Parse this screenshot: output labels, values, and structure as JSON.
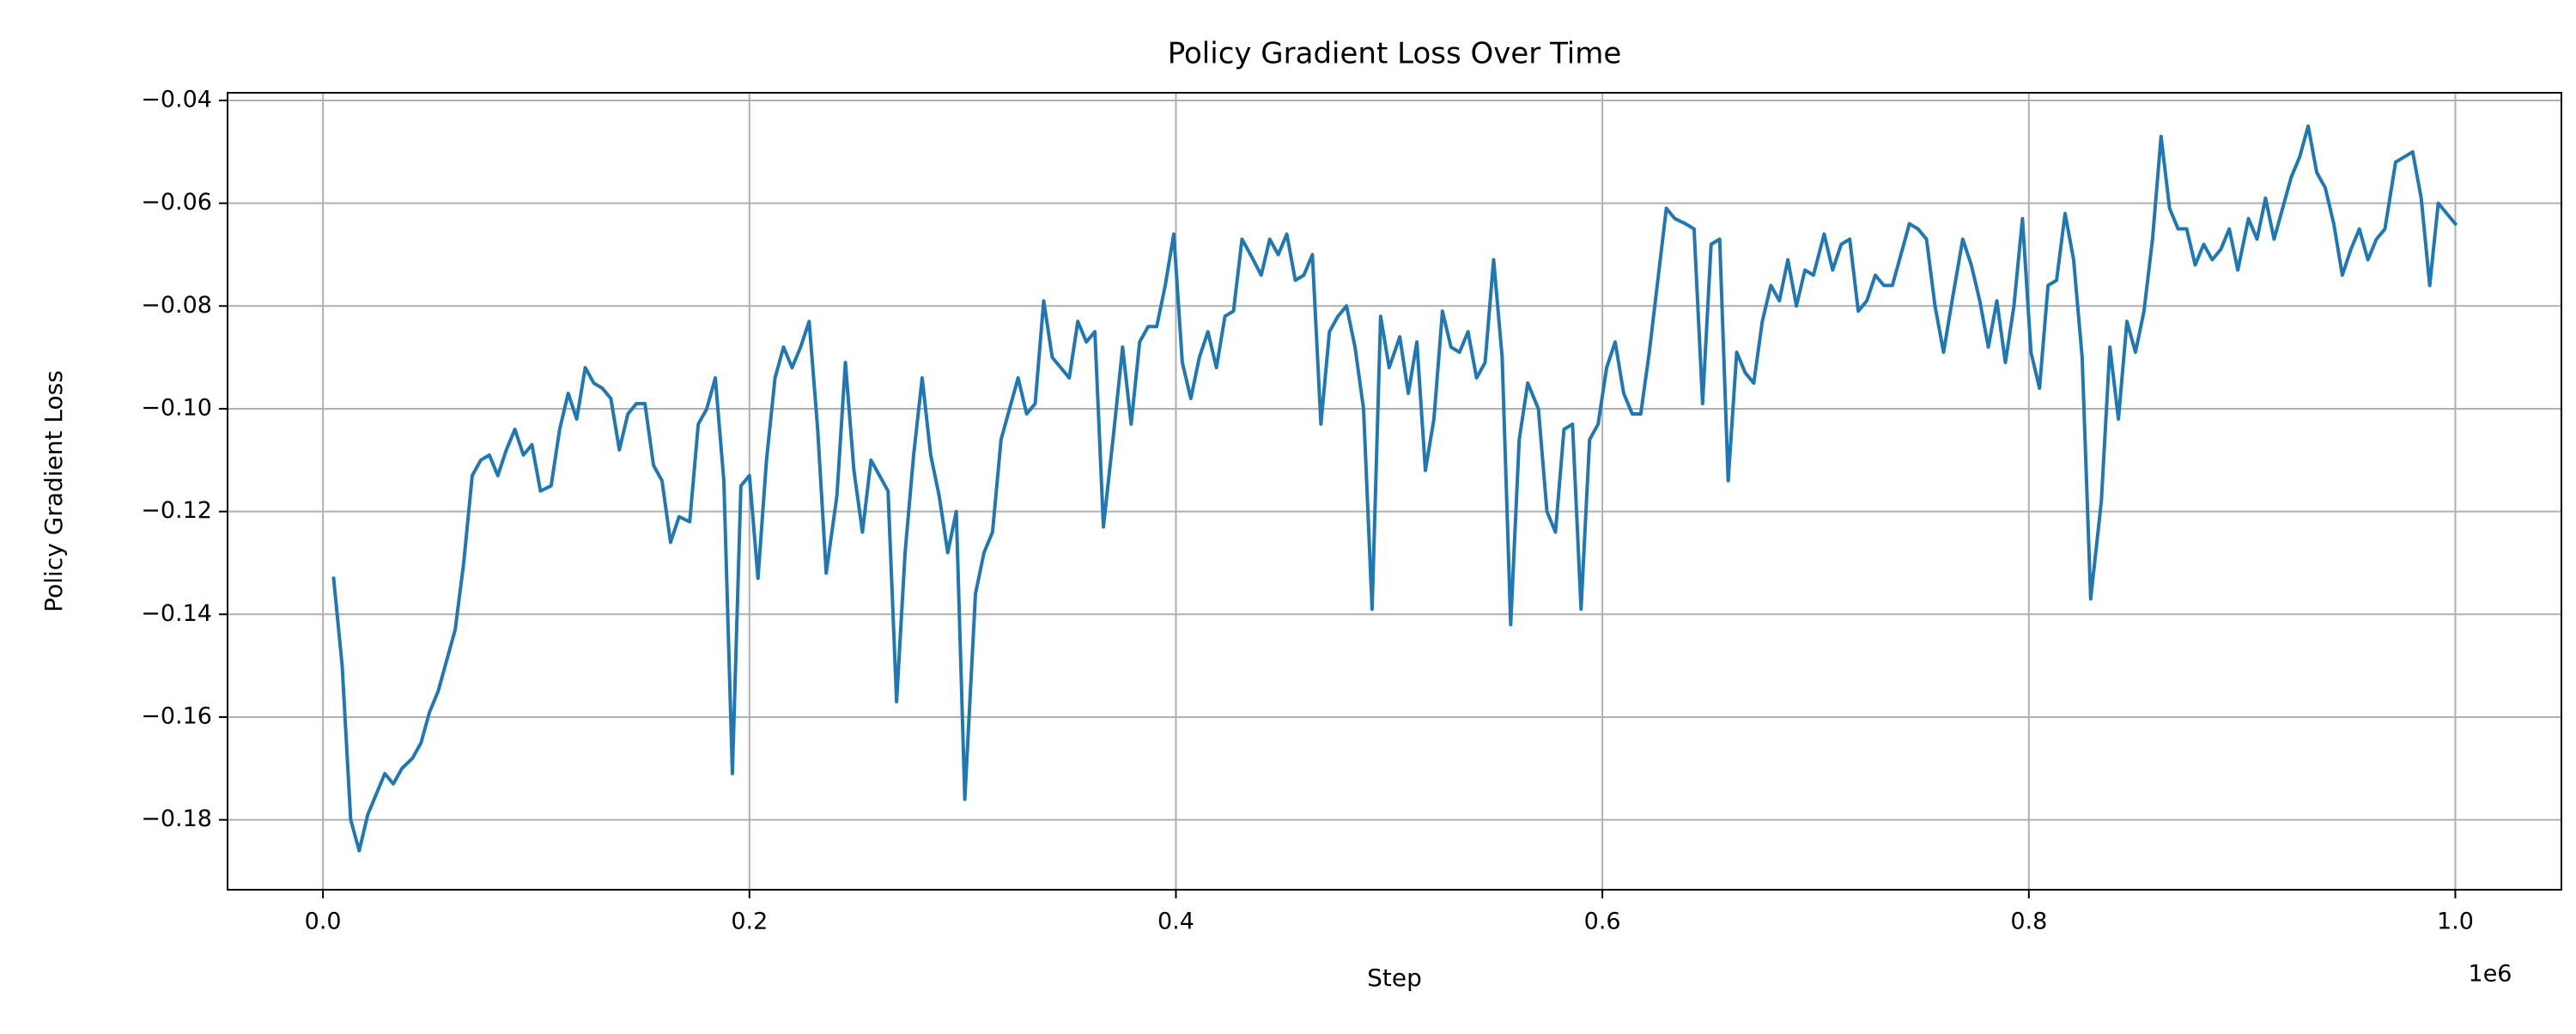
{
  "chart_data": {
    "type": "line",
    "title": "Policy Gradient Loss Over Time",
    "xlabel": "Step",
    "ylabel": "Policy Gradient Loss",
    "x_offset_label": "1e6",
    "color": "#1f77b4",
    "grid": true,
    "xlim": [
      -44750,
      1049750
    ],
    "ylim": [
      -0.1936,
      -0.0385
    ],
    "xticks": [
      {
        "value": 0,
        "label": "0.0"
      },
      {
        "value": 200000,
        "label": "0.2"
      },
      {
        "value": 400000,
        "label": "0.4"
      },
      {
        "value": 600000,
        "label": "0.6"
      },
      {
        "value": 800000,
        "label": "0.8"
      },
      {
        "value": 1000000,
        "label": "1.0"
      }
    ],
    "yticks": [
      {
        "value": -0.18,
        "label": "−0.18"
      },
      {
        "value": -0.16,
        "label": "−0.16"
      },
      {
        "value": -0.14,
        "label": "−0.14"
      },
      {
        "value": -0.12,
        "label": "−0.12"
      },
      {
        "value": -0.1,
        "label": "−0.10"
      },
      {
        "value": -0.08,
        "label": "−0.08"
      },
      {
        "value": -0.06,
        "label": "−0.06"
      },
      {
        "value": -0.04,
        "label": "−0.04"
      }
    ],
    "x": [
      5000,
      9000,
      13000,
      17000,
      21000,
      25000,
      29000,
      33000,
      37000,
      42000,
      46000,
      50000,
      54000,
      58000,
      62000,
      66000,
      70000,
      74000,
      78000,
      82000,
      86000,
      90000,
      94000,
      98000,
      102000,
      107000,
      111000,
      115000,
      119000,
      123000,
      127000,
      131000,
      135000,
      139000,
      143000,
      147000,
      151000,
      155000,
      159000,
      163000,
      167000,
      172000,
      176000,
      180000,
      184000,
      188000,
      192000,
      196000,
      200000,
      204000,
      208000,
      212000,
      216000,
      220000,
      224000,
      228000,
      232000,
      236000,
      241000,
      245000,
      249000,
      253000,
      257000,
      261000,
      265000,
      269000,
      273000,
      277000,
      281000,
      285000,
      289000,
      293000,
      297000,
      301000,
      306000,
      310000,
      314000,
      318000,
      322000,
      326000,
      330000,
      334000,
      338000,
      342000,
      346000,
      350000,
      354000,
      358000,
      362000,
      366000,
      371000,
      375000,
      379000,
      383000,
      387000,
      391000,
      395000,
      399000,
      403000,
      407000,
      411000,
      415000,
      419000,
      423000,
      427000,
      431000,
      435000,
      440000,
      444000,
      448000,
      452000,
      456000,
      460000,
      464000,
      468000,
      472000,
      476000,
      480000,
      484000,
      488000,
      492000,
      496000,
      500000,
      505000,
      509000,
      513000,
      517000,
      521000,
      525000,
      529000,
      533000,
      537000,
      541000,
      545000,
      549000,
      553000,
      557000,
      561000,
      565000,
      570000,
      574000,
      578000,
      582000,
      586000,
      590000,
      594000,
      598000,
      602000,
      606000,
      610000,
      614000,
      618000,
      622000,
      626000,
      630000,
      634000,
      639000,
      643000,
      647000,
      651000,
      655000,
      659000,
      663000,
      667000,
      671000,
      675000,
      679000,
      683000,
      687000,
      691000,
      695000,
      699000,
      704000,
      708000,
      712000,
      716000,
      720000,
      724000,
      728000,
      732000,
      736000,
      740000,
      744000,
      748000,
      752000,
      756000,
      760000,
      764000,
      769000,
      773000,
      777000,
      781000,
      785000,
      789000,
      793000,
      797000,
      801000,
      805000,
      809000,
      813000,
      817000,
      821000,
      825000,
      829000,
      834000,
      838000,
      842000,
      846000,
      850000,
      854000,
      858000,
      862000,
      866000,
      870000,
      874000,
      878000,
      882000,
      886000,
      890000,
      894000,
      898000,
      903000,
      907000,
      911000,
      915000,
      919000,
      923000,
      927000,
      931000,
      935000,
      939000,
      943000,
      947000,
      951000,
      955000,
      959000,
      963000,
      967000,
      972000,
      976000,
      980000,
      984000,
      988000,
      992000,
      1000000
    ],
    "values": [
      -0.133,
      -0.15,
      -0.18,
      -0.186,
      -0.179,
      -0.175,
      -0.171,
      -0.173,
      -0.17,
      -0.168,
      -0.165,
      -0.159,
      -0.155,
      -0.149,
      -0.143,
      -0.13,
      -0.113,
      -0.11,
      -0.109,
      -0.113,
      -0.108,
      -0.104,
      -0.109,
      -0.107,
      -0.116,
      -0.115,
      -0.104,
      -0.097,
      -0.102,
      -0.092,
      -0.095,
      -0.096,
      -0.098,
      -0.108,
      -0.101,
      -0.099,
      -0.099,
      -0.111,
      -0.114,
      -0.126,
      -0.121,
      -0.122,
      -0.103,
      -0.1,
      -0.094,
      -0.114,
      -0.171,
      -0.115,
      -0.113,
      -0.133,
      -0.11,
      -0.094,
      -0.088,
      -0.092,
      -0.088,
      -0.083,
      -0.104,
      -0.132,
      -0.117,
      -0.091,
      -0.112,
      -0.124,
      -0.11,
      -0.113,
      -0.116,
      -0.157,
      -0.128,
      -0.109,
      -0.094,
      -0.109,
      -0.117,
      -0.128,
      -0.12,
      -0.176,
      -0.136,
      -0.128,
      -0.124,
      -0.106,
      -0.1,
      -0.094,
      -0.101,
      -0.099,
      -0.079,
      -0.09,
      -0.092,
      -0.094,
      -0.083,
      -0.087,
      -0.085,
      -0.123,
      -0.104,
      -0.088,
      -0.103,
      -0.087,
      -0.084,
      -0.084,
      -0.076,
      -0.066,
      -0.091,
      -0.098,
      -0.09,
      -0.085,
      -0.092,
      -0.082,
      -0.081,
      -0.067,
      -0.07,
      -0.074,
      -0.067,
      -0.07,
      -0.066,
      -0.075,
      -0.074,
      -0.07,
      -0.103,
      -0.085,
      -0.082,
      -0.08,
      -0.088,
      -0.1,
      -0.139,
      -0.082,
      -0.092,
      -0.086,
      -0.097,
      -0.087,
      -0.112,
      -0.102,
      -0.081,
      -0.088,
      -0.089,
      -0.085,
      -0.094,
      -0.091,
      -0.071,
      -0.09,
      -0.142,
      -0.106,
      -0.095,
      -0.1,
      -0.12,
      -0.124,
      -0.104,
      -0.103,
      -0.139,
      -0.106,
      -0.103,
      -0.092,
      -0.087,
      -0.097,
      -0.101,
      -0.101,
      -0.089,
      -0.075,
      -0.061,
      -0.063,
      -0.064,
      -0.065,
      -0.099,
      -0.068,
      -0.067,
      -0.114,
      -0.089,
      -0.093,
      -0.095,
      -0.083,
      -0.076,
      -0.079,
      -0.071,
      -0.08,
      -0.073,
      -0.074,
      -0.066,
      -0.073,
      -0.068,
      -0.067,
      -0.081,
      -0.079,
      -0.074,
      -0.076,
      -0.076,
      -0.07,
      -0.064,
      -0.065,
      -0.067,
      -0.08,
      -0.089,
      -0.079,
      -0.067,
      -0.072,
      -0.079,
      -0.088,
      -0.079,
      -0.091,
      -0.08,
      -0.063,
      -0.089,
      -0.096,
      -0.076,
      -0.075,
      -0.062,
      -0.071,
      -0.09,
      -0.137,
      -0.118,
      -0.088,
      -0.102,
      -0.083,
      -0.089,
      -0.081,
      -0.067,
      -0.047,
      -0.061,
      -0.065,
      -0.065,
      -0.072,
      -0.068,
      -0.071,
      -0.069,
      -0.065,
      -0.073,
      -0.063,
      -0.067,
      -0.059,
      -0.067,
      -0.061,
      -0.055,
      -0.051,
      -0.045,
      -0.054,
      -0.057,
      -0.064,
      -0.074,
      -0.069,
      -0.065,
      -0.071,
      -0.067,
      -0.065,
      -0.052,
      -0.051,
      -0.05,
      -0.059,
      -0.076,
      -0.06,
      -0.064
    ]
  }
}
